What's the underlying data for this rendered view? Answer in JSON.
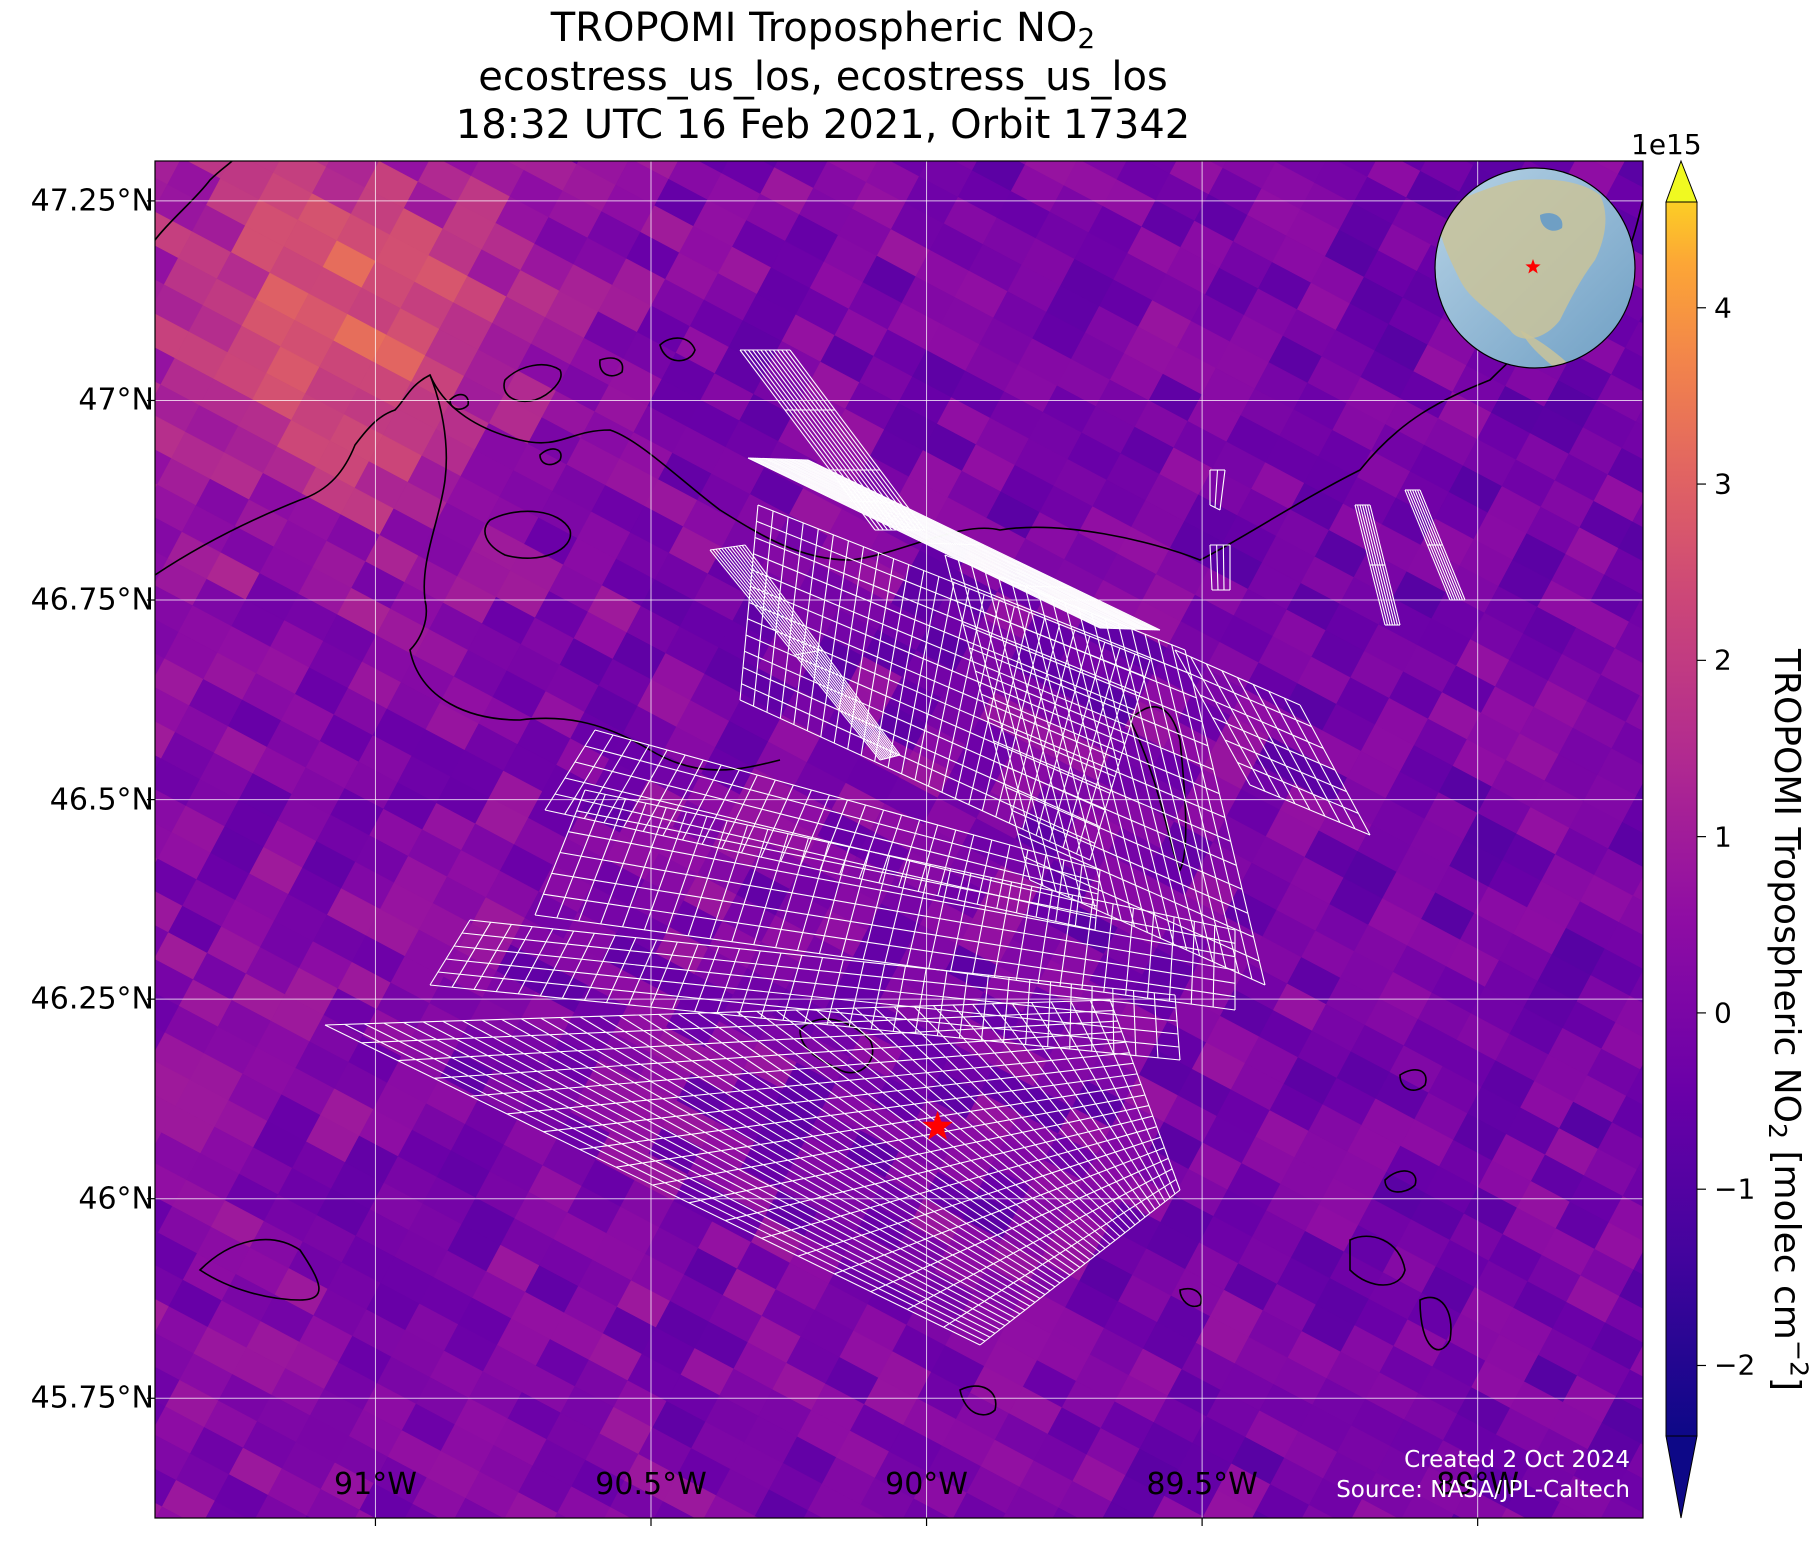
{
  "title": {
    "line1": "TROPOMI Tropospheric NO",
    "line1_sub": "2",
    "line2": "ecostress_us_los, ecostress_us_los",
    "line3": "18:32 UTC 16 Feb 2021, Orbit 17342"
  },
  "map": {
    "lon_range": [
      -91.4,
      -88.7
    ],
    "lat_range": [
      45.6,
      47.3
    ],
    "lat_ticks": [
      {
        "value": 47.25,
        "label": "47.25°N"
      },
      {
        "value": 47.0,
        "label": "47°N"
      },
      {
        "value": 46.75,
        "label": "46.75°N"
      },
      {
        "value": 46.5,
        "label": "46.5°N"
      },
      {
        "value": 46.25,
        "label": "46.25°N"
      },
      {
        "value": 46.0,
        "label": "46°N"
      },
      {
        "value": 45.75,
        "label": "45.75°N"
      }
    ],
    "lon_ticks": [
      {
        "value": -91.0,
        "label": "91°W"
      },
      {
        "value": -90.5,
        "label": "90.5°W"
      },
      {
        "value": -90.0,
        "label": "90°W"
      },
      {
        "value": -89.5,
        "label": "89.5°W"
      },
      {
        "value": -89.0,
        "label": "89°W"
      }
    ],
    "gridlines": true,
    "colormap": "plasma",
    "marker": {
      "lon": -89.98,
      "lat": 46.09,
      "symbol": "star",
      "color": "#ff0000"
    },
    "overlay": "ECOSTRESS footprint grids (white outline)",
    "inset": "globe locator, top-right, red star over north-central United States"
  },
  "colorbar": {
    "exponent": "1e15",
    "ticks": [
      {
        "value": 4,
        "label": "4"
      },
      {
        "value": 3,
        "label": "3"
      },
      {
        "value": 2,
        "label": "2"
      },
      {
        "value": 1,
        "label": "1"
      },
      {
        "value": 0,
        "label": "0"
      },
      {
        "value": -1,
        "label": "−1"
      },
      {
        "value": -2,
        "label": "−2"
      }
    ],
    "range": [
      -2.4,
      4.6
    ],
    "extend": "both",
    "label_prefix": "TROPOMI Tropospheric NO",
    "label_sub": "2",
    "label_units": " [molec cm",
    "label_sup": "−2",
    "label_end": "]"
  },
  "credits": {
    "created": "Created 2 Oct 2024",
    "source": "Source: NASA/JPL-Caltech"
  }
}
